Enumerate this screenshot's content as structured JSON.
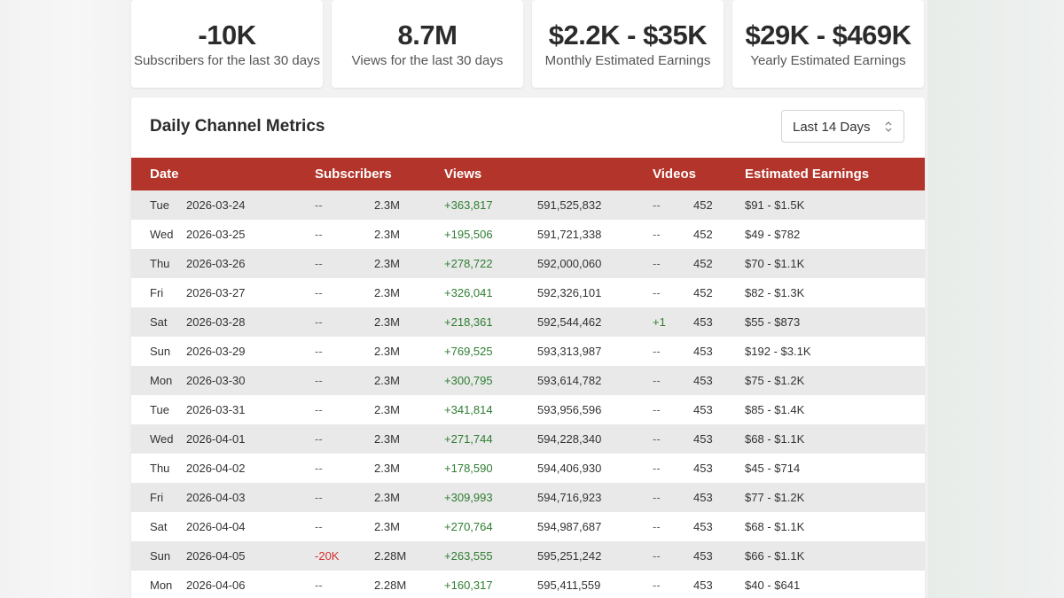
{
  "stats": [
    {
      "value": "-10K",
      "label": "Subscribers for the last 30 days"
    },
    {
      "value": "8.7M",
      "label": "Views for the last 30 days"
    },
    {
      "value": "$2.2K - $35K",
      "label": "Monthly Estimated Earnings"
    },
    {
      "value": "$29K - $469K",
      "label": "Yearly Estimated Earnings"
    }
  ],
  "metrics": {
    "title": "Daily Channel Metrics",
    "range": {
      "selected": "Last 14 Days"
    },
    "headers": {
      "date": "Date",
      "subscribers": "Subscribers",
      "views": "Views",
      "videos": "Videos",
      "earnings": "Estimated Earnings"
    },
    "rows": [
      {
        "day": "Tue",
        "date": "2026-03-24",
        "sub_delta": "--",
        "subs": "2.3M",
        "view_delta": "+363,817",
        "views": "591,525,832",
        "vid_delta": "--",
        "videos": "452",
        "earnings": "$91 - $1.5K"
      },
      {
        "day": "Wed",
        "date": "2026-03-25",
        "sub_delta": "--",
        "subs": "2.3M",
        "view_delta": "+195,506",
        "views": "591,721,338",
        "vid_delta": "--",
        "videos": "452",
        "earnings": "$49 - $782"
      },
      {
        "day": "Thu",
        "date": "2026-03-26",
        "sub_delta": "--",
        "subs": "2.3M",
        "view_delta": "+278,722",
        "views": "592,000,060",
        "vid_delta": "--",
        "videos": "452",
        "earnings": "$70 - $1.1K"
      },
      {
        "day": "Fri",
        "date": "2026-03-27",
        "sub_delta": "--",
        "subs": "2.3M",
        "view_delta": "+326,041",
        "views": "592,326,101",
        "vid_delta": "--",
        "videos": "452",
        "earnings": "$82 - $1.3K"
      },
      {
        "day": "Sat",
        "date": "2026-03-28",
        "sub_delta": "--",
        "subs": "2.3M",
        "view_delta": "+218,361",
        "views": "592,544,462",
        "vid_delta": "+1",
        "videos": "453",
        "earnings": "$55 - $873"
      },
      {
        "day": "Sun",
        "date": "2026-03-29",
        "sub_delta": "--",
        "subs": "2.3M",
        "view_delta": "+769,525",
        "views": "593,313,987",
        "vid_delta": "--",
        "videos": "453",
        "earnings": "$192 - $3.1K"
      },
      {
        "day": "Mon",
        "date": "2026-03-30",
        "sub_delta": "--",
        "subs": "2.3M",
        "view_delta": "+300,795",
        "views": "593,614,782",
        "vid_delta": "--",
        "videos": "453",
        "earnings": "$75 - $1.2K"
      },
      {
        "day": "Tue",
        "date": "2026-03-31",
        "sub_delta": "--",
        "subs": "2.3M",
        "view_delta": "+341,814",
        "views": "593,956,596",
        "vid_delta": "--",
        "videos": "453",
        "earnings": "$85 - $1.4K"
      },
      {
        "day": "Wed",
        "date": "2026-04-01",
        "sub_delta": "--",
        "subs": "2.3M",
        "view_delta": "+271,744",
        "views": "594,228,340",
        "vid_delta": "--",
        "videos": "453",
        "earnings": "$68 - $1.1K"
      },
      {
        "day": "Thu",
        "date": "2026-04-02",
        "sub_delta": "--",
        "subs": "2.3M",
        "view_delta": "+178,590",
        "views": "594,406,930",
        "vid_delta": "--",
        "videos": "453",
        "earnings": "$45 - $714"
      },
      {
        "day": "Fri",
        "date": "2026-04-03",
        "sub_delta": "--",
        "subs": "2.3M",
        "view_delta": "+309,993",
        "views": "594,716,923",
        "vid_delta": "--",
        "videos": "453",
        "earnings": "$77 - $1.2K"
      },
      {
        "day": "Sat",
        "date": "2026-04-04",
        "sub_delta": "--",
        "subs": "2.3M",
        "view_delta": "+270,764",
        "views": "594,987,687",
        "vid_delta": "--",
        "videos": "453",
        "earnings": "$68 - $1.1K"
      },
      {
        "day": "Sun",
        "date": "2026-04-05",
        "sub_delta": "-20K",
        "subs": "2.28M",
        "view_delta": "+263,555",
        "views": "595,251,242",
        "vid_delta": "--",
        "videos": "453",
        "earnings": "$66 - $1.1K"
      },
      {
        "day": "Mon",
        "date": "2026-04-06",
        "sub_delta": "--",
        "subs": "2.28M",
        "view_delta": "+160,317",
        "views": "595,411,559",
        "vid_delta": "--",
        "videos": "453",
        "earnings": "$40 - $641"
      }
    ]
  },
  "colors": {
    "header_bg": "#b3342a",
    "positive": "#2e7d32",
    "negative": "#d32f2f"
  },
  "icons": {
    "range_select": "chevron-up-down-icon"
  }
}
